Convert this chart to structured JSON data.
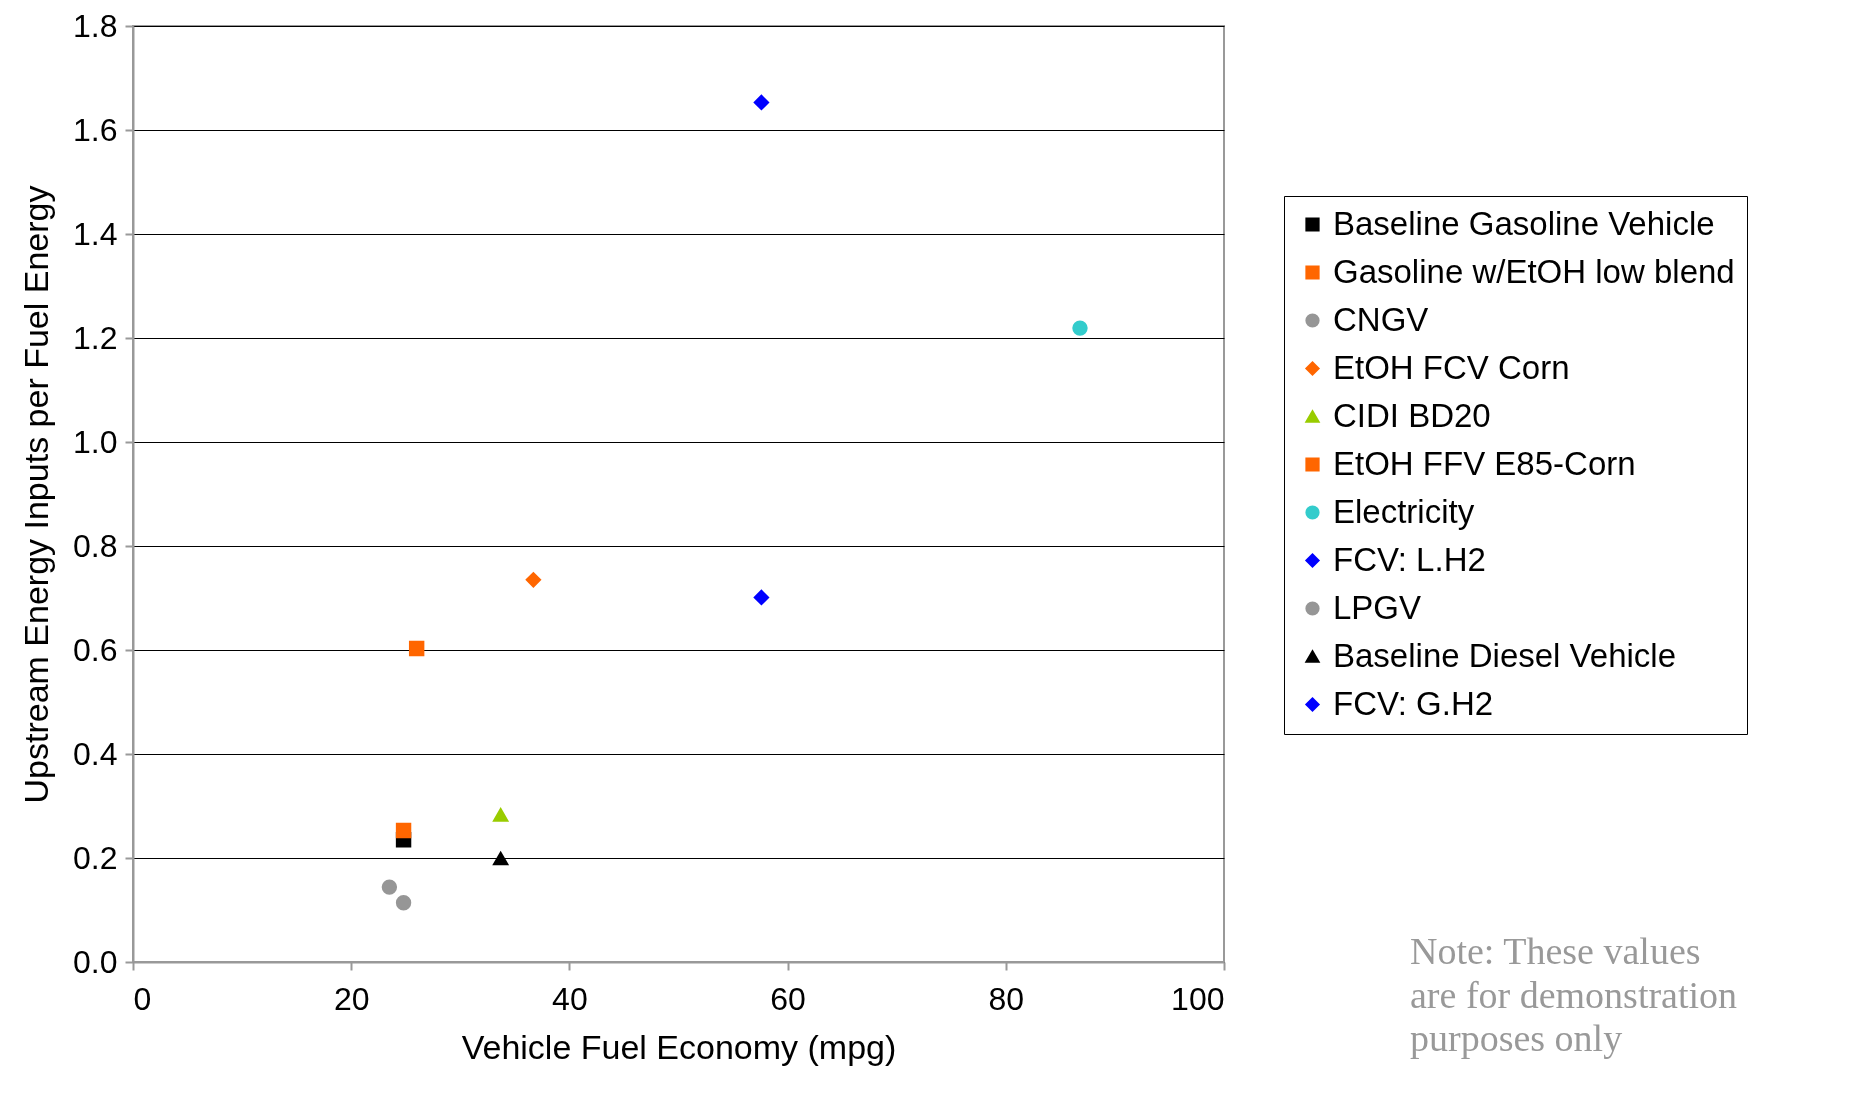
{
  "chart_data": {
    "type": "scatter",
    "xlabel": "Vehicle Fuel Economy (mpg)",
    "ylabel": "Upstream Energy Inputs per Fuel Energy",
    "xlim": [
      0,
      100
    ],
    "xticks": [
      0,
      20,
      40,
      60,
      80,
      100
    ],
    "ylim": [
      0,
      1.8
    ],
    "yticks": [
      {
        "value": 0,
        "label": "0.0"
      },
      {
        "value": 0.2,
        "label": "0.2"
      },
      {
        "value": 0.4,
        "label": "0.4"
      },
      {
        "value": 0.6,
        "label": "0.6"
      },
      {
        "value": 0.8,
        "label": "0.8"
      },
      {
        "value": 1,
        "label": "1.0"
      },
      {
        "value": 1.2,
        "label": "1.2"
      },
      {
        "value": 1.4,
        "label": "1.4"
      },
      {
        "value": 1.6,
        "label": "1.6"
      },
      {
        "value": 1.8,
        "label": "1.8"
      }
    ],
    "grid": "y",
    "legend": "right",
    "annotations": [
      "Note: These values are for demonstration purposes only"
    ],
    "series": [
      {
        "name": "Baseline Gasoline Vehicle",
        "color": "#000000",
        "marker": "square",
        "x": [
          24.8
        ],
        "values": [
          0.235
        ]
      },
      {
        "name": "Gasoline w/EtOH low blend",
        "color": "#ff6600",
        "marker": "square",
        "x": [
          24.8
        ],
        "values": [
          0.253
        ]
      },
      {
        "name": "CNGV",
        "color": "#969696",
        "marker": "circle",
        "x": [
          23.5
        ],
        "values": [
          0.144
        ]
      },
      {
        "name": "EtOH FCV Corn",
        "color": "#ff6600",
        "marker": "diamond",
        "x": [
          36.7
        ],
        "values": [
          0.735
        ]
      },
      {
        "name": "CIDI BD20",
        "color": "#99cc00",
        "marker": "triangle",
        "x": [
          33.7
        ],
        "values": [
          0.283
        ]
      },
      {
        "name": "EtOH FFV E85-Corn",
        "color": "#ff6600",
        "marker": "square",
        "x": [
          26.0
        ],
        "values": [
          0.603
        ]
      },
      {
        "name": "Electricity",
        "color": "#33cccc",
        "marker": "circle",
        "x": [
          86.8
        ],
        "values": [
          1.219
        ]
      },
      {
        "name": "FCV: L.H2",
        "color": "#0000ff",
        "marker": "diamond",
        "x": [
          57.6
        ],
        "values": [
          1.653
        ]
      },
      {
        "name": "LPGV",
        "color": "#969696",
        "marker": "circle",
        "x": [
          24.8
        ],
        "values": [
          0.114
        ]
      },
      {
        "name": "Baseline Diesel Vehicle",
        "color": "#000000",
        "marker": "triangle",
        "x": [
          33.7
        ],
        "values": [
          0.199
        ]
      },
      {
        "name": "FCV: G.H2",
        "color": "#0000ff",
        "marker": "diamond",
        "x": [
          57.6
        ],
        "values": [
          0.701
        ]
      }
    ]
  }
}
